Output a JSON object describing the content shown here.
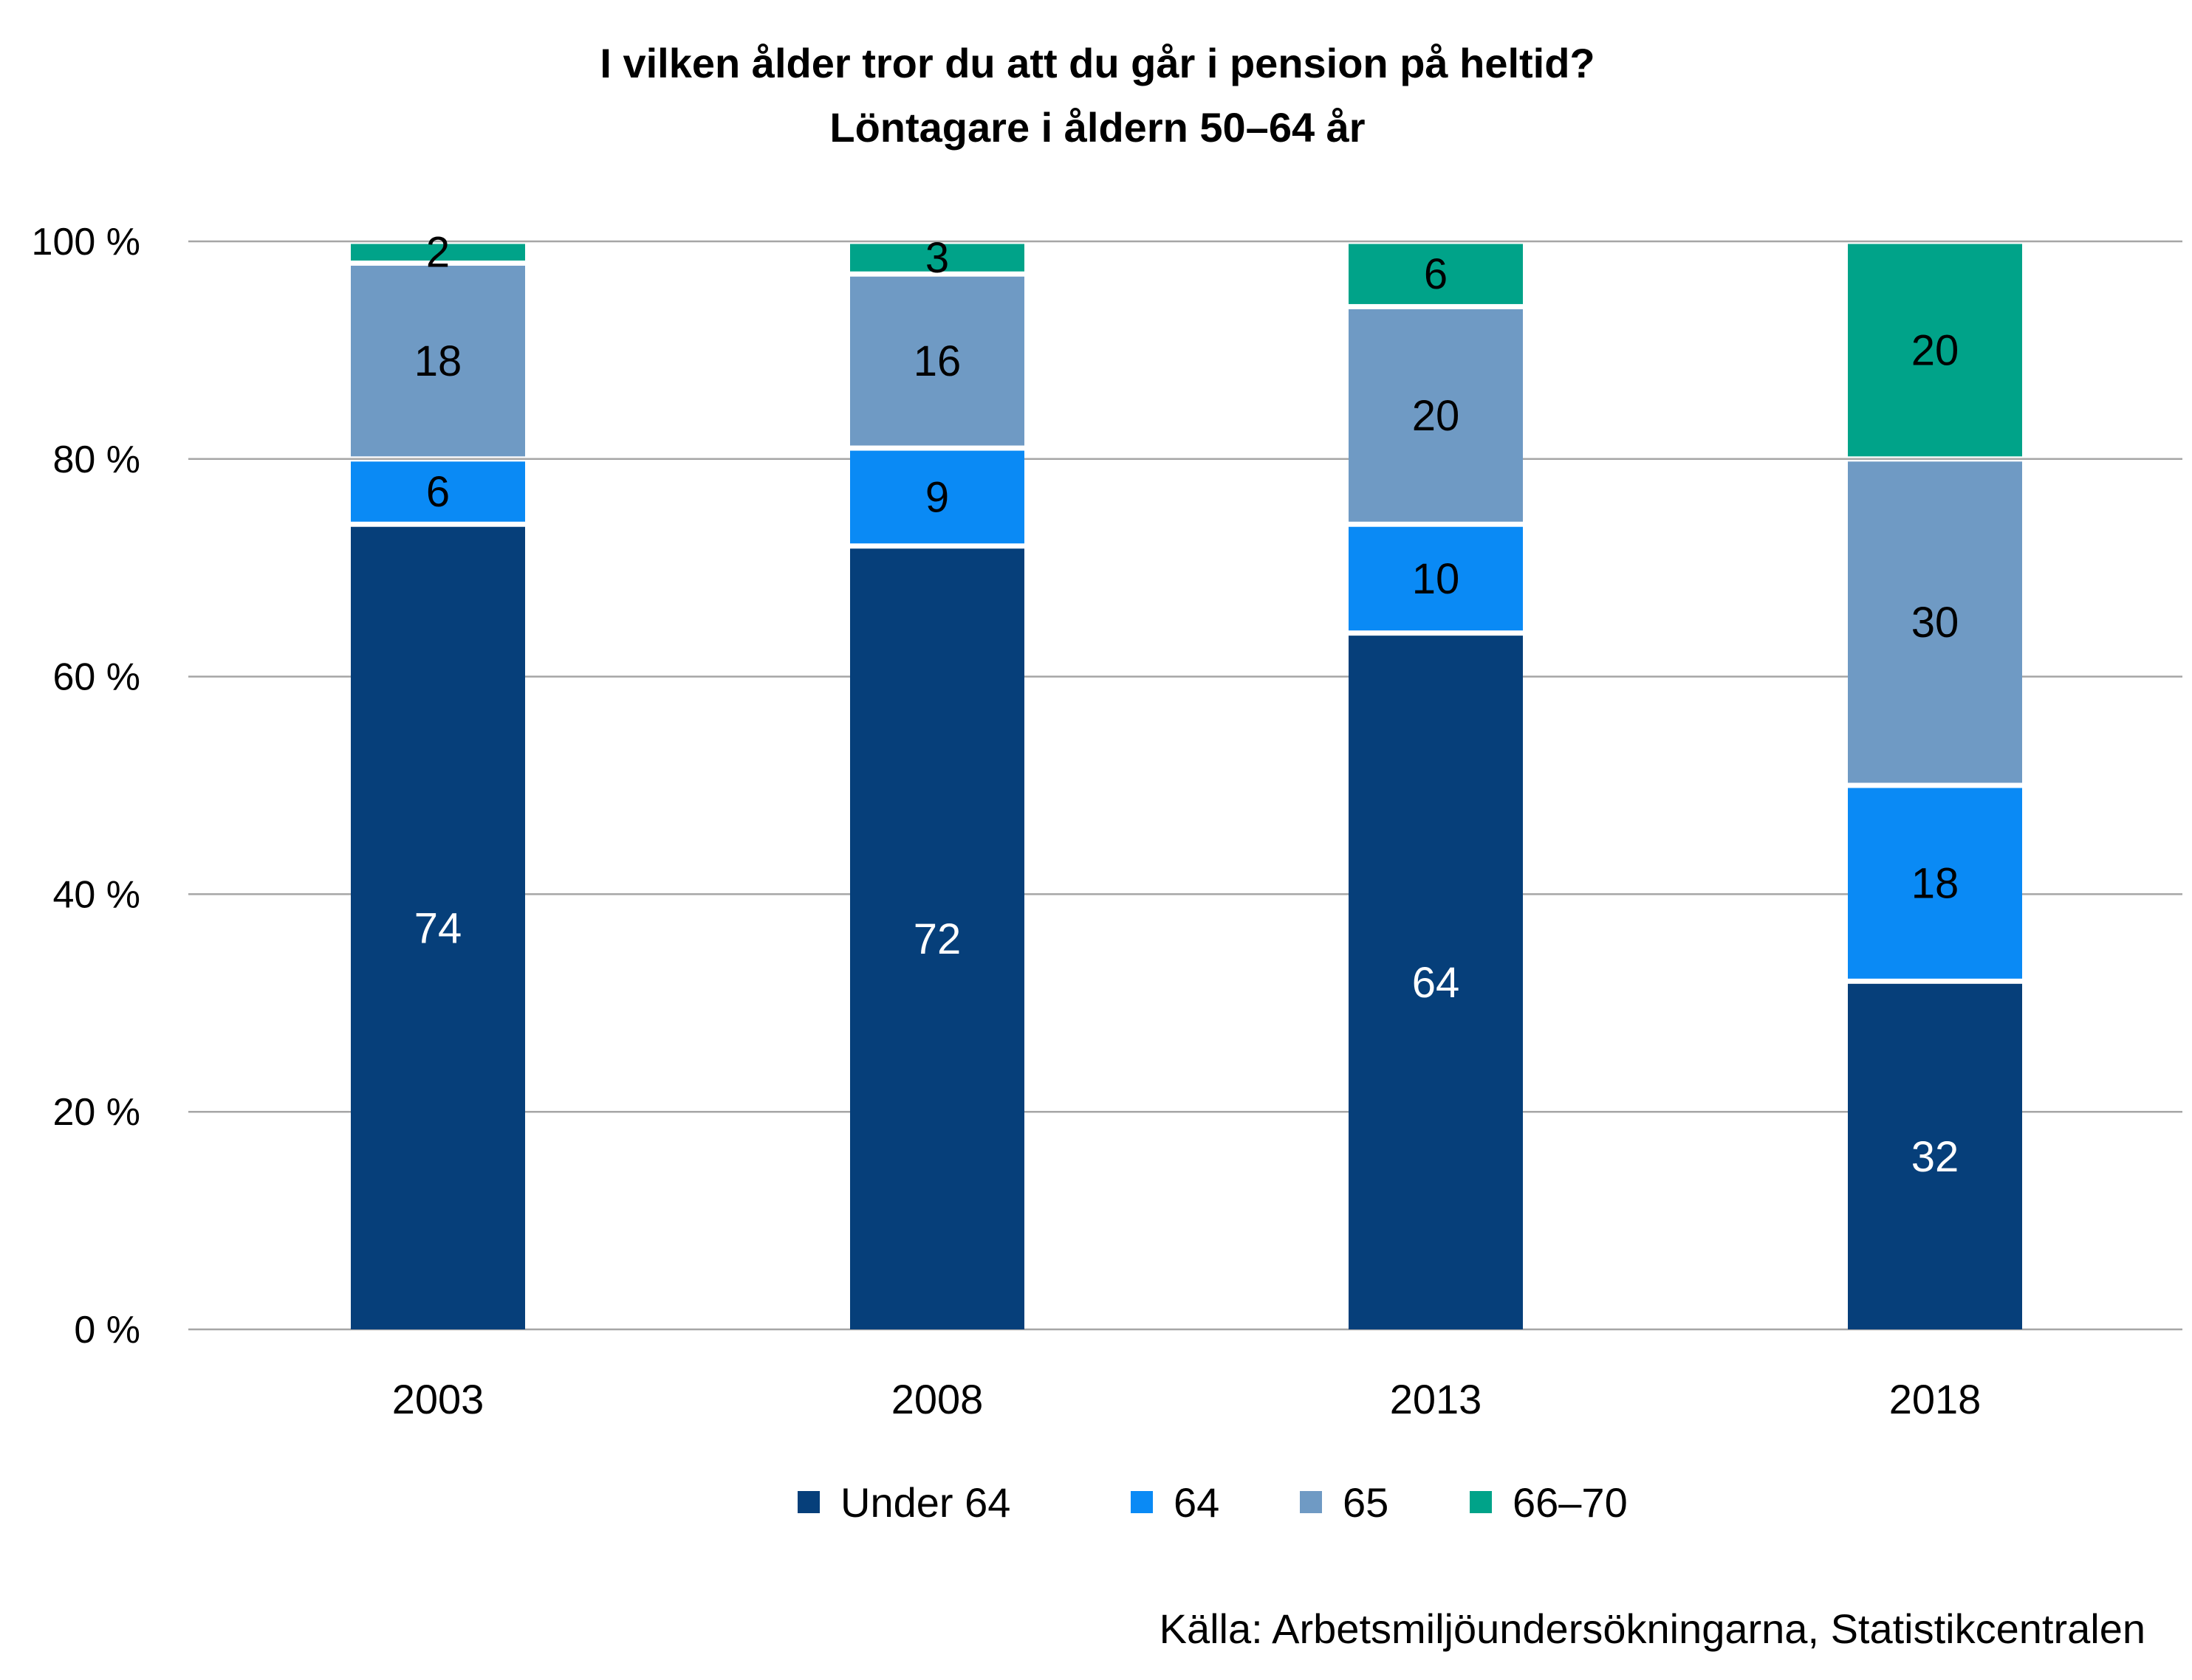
{
  "chart_data": {
    "type": "bar",
    "stacked": true,
    "title": "I vilken ålder tror du att du går i pension på heltid?",
    "subtitle": "Löntagare i åldern 50–64 år",
    "categories": [
      "2003",
      "2008",
      "2013",
      "2018"
    ],
    "series": [
      {
        "name": "Under 64",
        "values": [
          74,
          72,
          64,
          32
        ],
        "color": "#063f7a",
        "label_color": "#ffffff"
      },
      {
        "name": "64",
        "values": [
          6,
          9,
          10,
          18
        ],
        "color": "#0a8af5",
        "label_color": "#000000"
      },
      {
        "name": "65",
        "values": [
          18,
          16,
          20,
          30
        ],
        "color": "#6f9ac4",
        "label_color": "#000000"
      },
      {
        "name": "66–70",
        "values": [
          2,
          3,
          6,
          20
        ],
        "color": "#00a389",
        "label_color": "#000000"
      }
    ],
    "ylim": [
      0,
      100
    ],
    "yticks": [
      "0 %",
      "20 %",
      "40 %",
      "60 %",
      "80 %",
      "100 %"
    ],
    "grid": true,
    "legend_position": "bottom",
    "source": "Källa: Arbetsmiljöundersökningarna, Statistikcentralen"
  }
}
